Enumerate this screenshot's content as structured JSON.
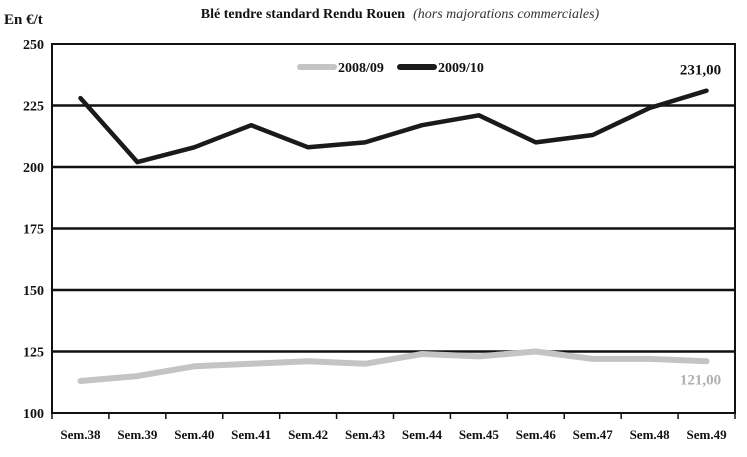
{
  "chart_data": {
    "type": "line",
    "title": "Blé tendre standard Rendu Rouen",
    "subtitle": "(hors majorations commerciales)",
    "ylabel": "En €/t",
    "xlabel": "",
    "categories": [
      "Sem.38",
      "Sem.39",
      "Sem.40",
      "Sem.41",
      "Sem.42",
      "Sem.43",
      "Sem.44",
      "Sem.45",
      "Sem.46",
      "Sem.47",
      "Sem.48",
      "Sem.49"
    ],
    "yticks": [
      100,
      125,
      150,
      175,
      200,
      225,
      250
    ],
    "ylim": [
      100,
      250
    ],
    "grid": true,
    "legend_position": "top-center",
    "series": [
      {
        "name": "2008/09",
        "color": "#c4c4c4",
        "values": [
          113,
          115,
          119,
          120,
          121,
          120,
          124,
          123,
          125,
          122,
          122,
          121
        ],
        "end_label": "121,00"
      },
      {
        "name": "2009/10",
        "color": "#1a1a1a",
        "values": [
          228,
          202,
          208,
          217,
          208,
          210,
          217,
          221,
          210,
          213,
          224,
          231
        ],
        "end_label": "231,00"
      }
    ]
  }
}
